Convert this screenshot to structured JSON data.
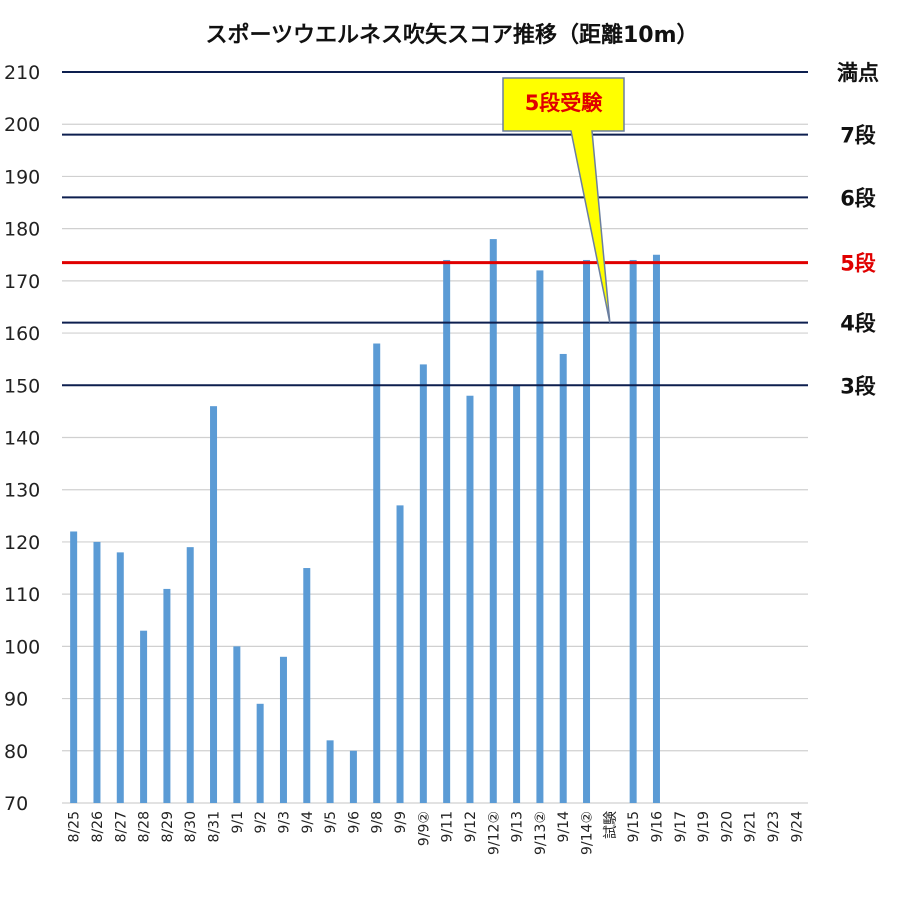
{
  "chart_data": {
    "type": "bar",
    "title": "スポーツウエルネス吹矢スコア推移（距離10m）",
    "ylim": [
      70,
      210
    ],
    "yticks": [
      70,
      80,
      90,
      100,
      110,
      120,
      130,
      140,
      150,
      160,
      170,
      180,
      190,
      200,
      210
    ],
    "grid": true,
    "categories": [
      "8/25",
      "8/26",
      "8/27",
      "8/28",
      "8/29",
      "8/30",
      "8/31",
      "9/1",
      "9/2",
      "9/3",
      "9/4",
      "9/5",
      "9/6",
      "9/8",
      "9/9",
      "9/9②",
      "9/11",
      "9/12",
      "9/12②",
      "9/13",
      "9/13②",
      "9/14",
      "9/14②",
      "試験",
      "9/15",
      "9/16",
      "9/17",
      "9/19",
      "9/20",
      "9/21",
      "9/23",
      "9/24"
    ],
    "series": [
      {
        "values": [
          122,
          120,
          118,
          103,
          111,
          119,
          146,
          100,
          89,
          98,
          115,
          82,
          80,
          158,
          127,
          154,
          174,
          148,
          178,
          150,
          172,
          156,
          174,
          null,
          174,
          175,
          null,
          null,
          null,
          null,
          null,
          null
        ],
        "color": "#5b9bd5"
      }
    ],
    "reference_lines": [
      {
        "label": "満点",
        "value": 210,
        "color": "#0d1f4f",
        "label_color": "#111111"
      },
      {
        "label": "7段",
        "value": 198,
        "color": "#0d1f4f",
        "label_color": "#111111"
      },
      {
        "label": "6段",
        "value": 186,
        "color": "#0d1f4f",
        "label_color": "#111111"
      },
      {
        "label": "5段",
        "value": 173.5,
        "color": "#e00000",
        "label_color": "#e00000"
      },
      {
        "label": "4段",
        "value": 162,
        "color": "#0d1f4f",
        "label_color": "#111111"
      },
      {
        "label": "3段",
        "value": 150,
        "color": "#0d1f4f",
        "label_color": "#111111"
      }
    ],
    "annotation": {
      "text": "5段受験",
      "target_category": "試験",
      "target_value": 162,
      "fill": "#ffff00",
      "text_color": "#e00000"
    }
  }
}
